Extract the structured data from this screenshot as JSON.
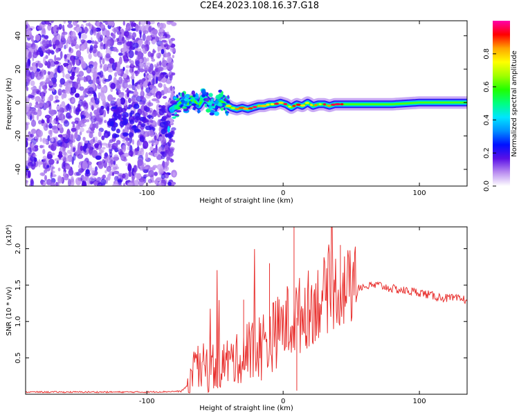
{
  "title": "C2E4.2023.108.16.37.G18",
  "chart_data": [
    {
      "type": "heatmap",
      "xlabel": "Height of straight line (km)",
      "ylabel": "Frequency (Hz)",
      "xlim": [
        -189,
        135
      ],
      "ylim": [
        -50,
        49
      ],
      "xticks": [
        -100,
        0,
        100
      ],
      "yticks": [
        -40,
        -20,
        0,
        20,
        40
      ],
      "colorbar": {
        "label": "Normalized spectral amplitude",
        "range": [
          0,
          1
        ],
        "ticks": [
          "0.0",
          "0.2",
          "0.4",
          "0.6",
          "0.8"
        ],
        "colormap": [
          "#ffffff",
          "#b98cf0",
          "#5a10e6",
          "#0010ff",
          "#0090ff",
          "#00e5ff",
          "#00ff80",
          "#20ff00",
          "#a0ff00",
          "#ffff00",
          "#ffa500",
          "#ff0000",
          "#ff00aa"
        ]
      },
      "ridge": {
        "x": [
          -82,
          -78,
          -74,
          -70,
          -66,
          -62,
          -58,
          -54,
          -50,
          -46,
          -42,
          -38,
          -34,
          -30,
          -26,
          -22,
          -18,
          -14,
          -10,
          -6,
          -2,
          2,
          6,
          10,
          14,
          18,
          22,
          26,
          30,
          34,
          38,
          42,
          46,
          60,
          80,
          100,
          120,
          135
        ],
        "y": [
          -4,
          -2,
          1,
          -1,
          2,
          -2,
          3,
          0,
          -2,
          1,
          -1,
          -3,
          -4,
          -3,
          -4,
          -3,
          -2,
          -2,
          -1,
          -1,
          0,
          -1,
          -3,
          -1,
          -2,
          0,
          -2,
          -1,
          -1,
          -2,
          -1,
          -1,
          -1,
          -1,
          -1,
          0,
          0,
          0
        ]
      }
    },
    {
      "type": "line",
      "xlabel": "Height of straight line (km)",
      "ylabel": "SNR (10 * v/v)",
      "yscale_label": "(x10⁴)",
      "xlim": [
        -189,
        135
      ],
      "ylim": [
        0,
        2.3
      ],
      "xticks": [
        -100,
        0,
        100
      ],
      "yticks": [
        0.5,
        1.0,
        1.5,
        2.0
      ],
      "series": [
        {
          "color": "#e8302e",
          "x": [
            -189,
            -160,
            -130,
            -100,
            -75,
            -70,
            -65,
            -60,
            -50,
            -40,
            -30,
            -20,
            -10,
            0,
            10,
            20,
            30,
            40,
            45,
            50,
            60,
            70,
            80,
            90,
            100,
            110,
            120,
            135
          ],
          "y": [
            0.03,
            0.03,
            0.03,
            0.03,
            0.04,
            0.12,
            0.3,
            0.35,
            0.38,
            0.45,
            0.5,
            0.62,
            0.75,
            0.95,
            1.05,
            1.2,
            1.35,
            1.45,
            1.45,
            1.48,
            1.48,
            1.5,
            1.45,
            1.42,
            1.4,
            1.35,
            1.32,
            1.3
          ]
        }
      ]
    }
  ]
}
